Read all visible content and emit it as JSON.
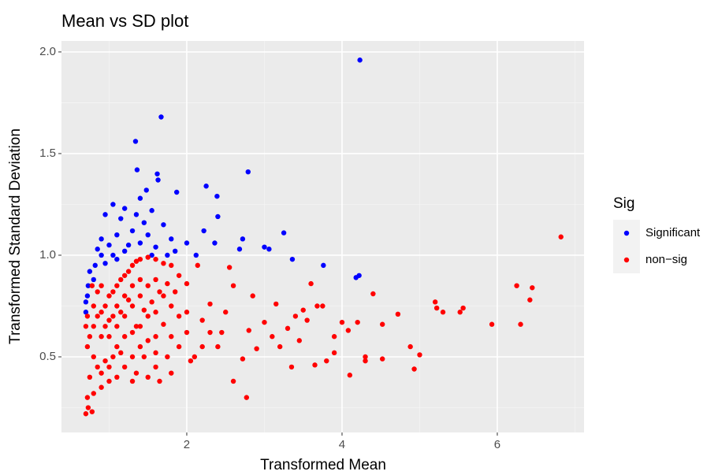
{
  "chart_data": {
    "type": "scatter",
    "title": "Mean vs SD plot",
    "x_label": "Transformed Mean",
    "y_label": "Transformed Standard Deviation",
    "legend_title": "Sig",
    "legend_position": "right",
    "grid": true,
    "xlim": [
      0.386,
      7.117
    ],
    "ylim": [
      0.128,
      2.054
    ],
    "xticks": [
      2,
      4,
      6
    ],
    "yticks": [
      {
        "value": 0.5,
        "label": "0.5"
      },
      {
        "value": 1.0,
        "label": "1.0"
      },
      {
        "value": 1.5,
        "label": "1.5"
      },
      {
        "value": 2.0,
        "label": "2.0"
      }
    ],
    "x_minor_ticks": [
      1,
      3,
      5,
      7
    ],
    "y_minor_ticks": [
      0.25,
      0.75,
      1.25,
      1.75
    ],
    "series": [
      {
        "name": "Significant",
        "color": "#0000ff",
        "x": [
          4.23,
          1.67,
          1.34,
          1.36,
          1.62,
          1.63,
          2.79,
          2.25,
          1.87,
          2.39,
          1.4,
          1.05,
          1.2,
          1.55,
          2.4,
          1.15,
          1.45,
          1.7,
          0.95,
          2.22,
          3.25,
          2.72,
          1.1,
          1.3,
          1.5,
          1.8,
          2.0,
          2.36,
          3.0,
          3.06,
          0.9,
          1.0,
          1.25,
          1.6,
          1.85,
          0.85,
          0.9,
          1.05,
          2.68,
          3.36,
          3.76,
          4.22,
          4.18,
          0.82,
          0.75,
          0.8,
          0.73,
          0.72,
          0.7,
          0.7,
          1.2,
          1.4,
          1.55,
          1.1,
          0.95,
          2.12,
          1.75,
          1.48,
          1.35
        ],
        "values": [
          1.96,
          1.68,
          1.56,
          1.42,
          1.4,
          1.37,
          1.41,
          1.34,
          1.31,
          1.29,
          1.28,
          1.25,
          1.23,
          1.22,
          1.19,
          1.18,
          1.16,
          1.15,
          1.2,
          1.12,
          1.11,
          1.08,
          1.1,
          1.12,
          1.1,
          1.08,
          1.06,
          1.06,
          1.04,
          1.03,
          1.08,
          1.05,
          1.05,
          1.04,
          1.02,
          1.03,
          1.0,
          1.0,
          1.03,
          0.98,
          0.95,
          0.9,
          0.89,
          0.95,
          0.92,
          0.88,
          0.85,
          0.8,
          0.77,
          0.72,
          1.02,
          1.06,
          1.0,
          0.98,
          0.96,
          1.0,
          1.0,
          1.32,
          1.2
        ]
      },
      {
        "name": "non−sig",
        "color": "#ff0000",
        "x": [
          6.82,
          6.25,
          6.45,
          6.42,
          6.3,
          5.93,
          5.56,
          5.52,
          5.3,
          5.2,
          5.22,
          5.0,
          4.88,
          4.93,
          4.72,
          4.52,
          4.52,
          4.4,
          4.3,
          4.3,
          4.2,
          4.08,
          4.0,
          3.9,
          3.9,
          3.8,
          3.75,
          3.68,
          3.6,
          3.5,
          3.45,
          3.4,
          3.3,
          3.2,
          3.1,
          3.0,
          2.85,
          2.8,
          2.77,
          2.72,
          2.6,
          2.6,
          2.55,
          2.5,
          2.45,
          2.4,
          2.3,
          2.2,
          2.14,
          2.1,
          2.0,
          2.0,
          3.35,
          3.65,
          4.1,
          3.55,
          3.15,
          2.9,
          0.7,
          0.78,
          0.73,
          0.72,
          0.8,
          0.9,
          1.0,
          1.1,
          0.75,
          0.85,
          0.95,
          1.05,
          1.2,
          1.35,
          1.5,
          1.65,
          1.8,
          1.1,
          0.8,
          0.72,
          0.75,
          0.8,
          0.85,
          0.9,
          0.95,
          1.0,
          1.05,
          1.1,
          1.15,
          1.2,
          1.25,
          1.3,
          1.35,
          1.4,
          1.5,
          1.6,
          1.7,
          1.8,
          1.9,
          1.0,
          1.1,
          1.2,
          1.3,
          1.4,
          1.5,
          1.6,
          1.7,
          1.8,
          1.9,
          2.0,
          1.2,
          1.3,
          1.4,
          1.5,
          1.6,
          1.7,
          1.8,
          1.9,
          1.4,
          1.5,
          1.6,
          1.3,
          1.45,
          1.6,
          1.75,
          0.9,
          1.0,
          1.1,
          1.2,
          1.3,
          1.4,
          0.8,
          0.85,
          0.9,
          0.95,
          1.05,
          1.15,
          1.25,
          1.35,
          1.45,
          1.55,
          1.65,
          1.75,
          1.85,
          0.78,
          0.72,
          0.7,
          1.0,
          1.15,
          0.9,
          1.3,
          1.6,
          2.05,
          2.2,
          2.3
        ],
        "values": [
          1.09,
          0.85,
          0.84,
          0.78,
          0.66,
          0.66,
          0.74,
          0.72,
          0.72,
          0.77,
          0.74,
          0.51,
          0.55,
          0.44,
          0.71,
          0.66,
          0.49,
          0.81,
          0.48,
          0.5,
          0.67,
          0.63,
          0.67,
          0.6,
          0.52,
          0.48,
          0.75,
          0.75,
          0.86,
          0.73,
          0.58,
          0.7,
          0.64,
          0.55,
          0.6,
          0.67,
          0.8,
          0.63,
          0.3,
          0.49,
          0.38,
          0.85,
          0.94,
          0.72,
          0.62,
          0.55,
          0.76,
          0.68,
          0.95,
          0.5,
          0.86,
          0.62,
          0.45,
          0.46,
          0.41,
          0.68,
          0.76,
          0.54,
          0.22,
          0.23,
          0.25,
          0.3,
          0.32,
          0.35,
          0.38,
          0.4,
          0.4,
          0.45,
          0.48,
          0.5,
          0.45,
          0.42,
          0.4,
          0.38,
          0.42,
          0.55,
          0.5,
          0.55,
          0.6,
          0.65,
          0.7,
          0.72,
          0.75,
          0.8,
          0.82,
          0.85,
          0.88,
          0.9,
          0.92,
          0.95,
          0.97,
          0.98,
          0.99,
          0.98,
          0.96,
          0.95,
          0.9,
          0.6,
          0.65,
          0.7,
          0.75,
          0.8,
          0.85,
          0.88,
          0.8,
          0.75,
          0.7,
          0.72,
          0.6,
          0.62,
          0.65,
          0.7,
          0.72,
          0.66,
          0.6,
          0.55,
          0.55,
          0.58,
          0.6,
          0.5,
          0.5,
          0.52,
          0.5,
          0.6,
          0.68,
          0.75,
          0.8,
          0.85,
          0.88,
          0.75,
          0.82,
          0.85,
          0.65,
          0.7,
          0.72,
          0.78,
          0.65,
          0.73,
          0.77,
          0.82,
          0.86,
          0.82,
          0.85,
          0.7,
          0.65,
          0.45,
          0.52,
          0.42,
          0.38,
          0.45,
          0.48,
          0.55,
          0.62
        ]
      }
    ]
  }
}
